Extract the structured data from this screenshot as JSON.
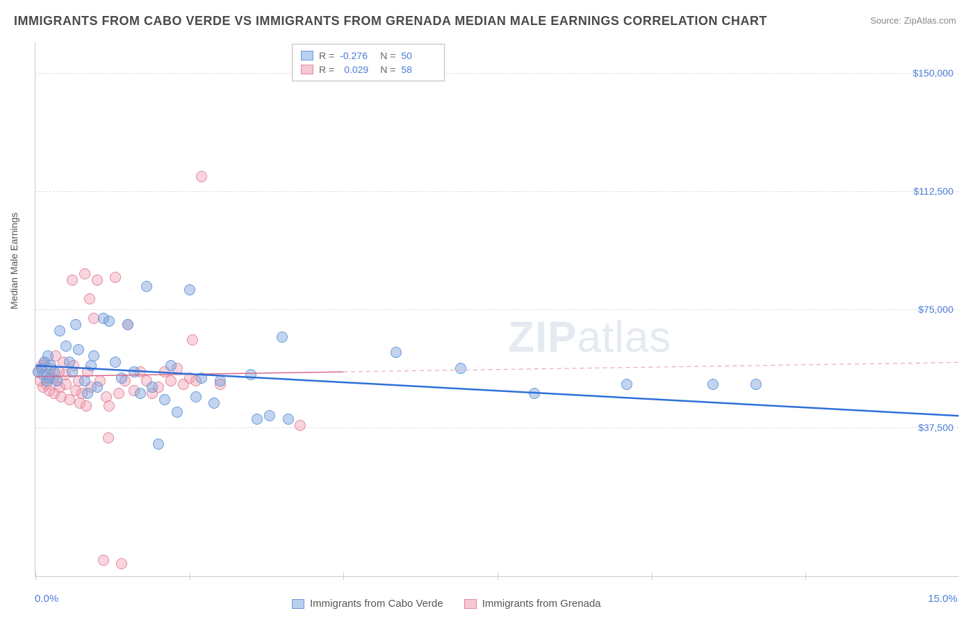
{
  "title": "IMMIGRANTS FROM CABO VERDE VS IMMIGRANTS FROM GRENADA MEDIAN MALE EARNINGS CORRELATION CHART",
  "source": "Source: ZipAtlas.com",
  "watermark_zip": "ZIP",
  "watermark_atlas": "atlas",
  "chart": {
    "type": "scatter",
    "ylabel": "Median Male Earnings",
    "xlim": [
      0,
      15
    ],
    "ylim": [
      -10000,
      160000
    ],
    "x_axis_min_label": "0.0%",
    "x_axis_max_label": "15.0%",
    "y_gridlines": [
      37500,
      75000,
      112500,
      150000
    ],
    "y_tick_labels": [
      "$37,500",
      "$75,000",
      "$112,500",
      "$150,000"
    ],
    "x_ticks": [
      0,
      2.5,
      5,
      7.5,
      10,
      12.5
    ],
    "background_color": "#ffffff",
    "grid_color": "#dddddd",
    "series": [
      {
        "name": "Immigrants from Cabo Verde",
        "color_fill": "rgba(120,160,220,0.45)",
        "color_stroke": "#6a9bd8",
        "swatch_fill": "#b8d0f0",
        "swatch_border": "#6a9bd8",
        "r": "-0.276",
        "n": "50",
        "regression": {
          "x1": 0,
          "y1": 57000,
          "x2": 15,
          "y2": 41000,
          "stroke": "#2e6fd8",
          "width": 2.5,
          "dash": "none"
        },
        "points": [
          [
            0.05,
            55000
          ],
          [
            0.1,
            56000
          ],
          [
            0.12,
            54000
          ],
          [
            0.15,
            58000
          ],
          [
            0.18,
            52000
          ],
          [
            0.2,
            60000
          ],
          [
            0.22,
            53000
          ],
          [
            0.25,
            57000
          ],
          [
            0.3,
            55000
          ],
          [
            0.35,
            52000
          ],
          [
            0.4,
            68000
          ],
          [
            0.5,
            63000
          ],
          [
            0.55,
            58000
          ],
          [
            0.6,
            55000
          ],
          [
            0.65,
            70000
          ],
          [
            0.7,
            62000
          ],
          [
            0.8,
            52000
          ],
          [
            0.85,
            48000
          ],
          [
            0.9,
            57000
          ],
          [
            0.95,
            60000
          ],
          [
            1.0,
            50000
          ],
          [
            1.1,
            72000
          ],
          [
            1.2,
            71000
          ],
          [
            1.3,
            58000
          ],
          [
            1.4,
            53000
          ],
          [
            1.5,
            70000
          ],
          [
            1.6,
            55000
          ],
          [
            1.7,
            48000
          ],
          [
            1.8,
            82000
          ],
          [
            1.9,
            50000
          ],
          [
            2.0,
            32000
          ],
          [
            2.1,
            46000
          ],
          [
            2.2,
            57000
          ],
          [
            2.3,
            42000
          ],
          [
            2.5,
            81000
          ],
          [
            2.6,
            47000
          ],
          [
            2.7,
            53000
          ],
          [
            2.9,
            45000
          ],
          [
            3.0,
            52000
          ],
          [
            3.5,
            54000
          ],
          [
            3.6,
            40000
          ],
          [
            3.8,
            41000
          ],
          [
            4.0,
            66000
          ],
          [
            4.1,
            40000
          ],
          [
            5.85,
            61000
          ],
          [
            6.9,
            56000
          ],
          [
            8.1,
            48000
          ],
          [
            9.6,
            51000
          ],
          [
            11.0,
            51000
          ],
          [
            11.7,
            51000
          ]
        ]
      },
      {
        "name": "Immigrants from Grenada",
        "color_fill": "rgba(240,150,170,0.40)",
        "color_stroke": "#e08aa0",
        "swatch_fill": "#f5c8d4",
        "swatch_border": "#e08aa0",
        "r": "0.029",
        "n": "58",
        "regression_solid": {
          "x1": 0,
          "y1": 53500,
          "x2": 5,
          "y2": 55000,
          "stroke": "#d86a88",
          "width": 1.5
        },
        "regression_dash": {
          "x1": 5,
          "y1": 55000,
          "x2": 15,
          "y2": 58000,
          "stroke": "#e8a8b8",
          "width": 1.2,
          "dash": "6,5"
        },
        "points": [
          [
            0.05,
            55000
          ],
          [
            0.08,
            52000
          ],
          [
            0.1,
            57000
          ],
          [
            0.12,
            50000
          ],
          [
            0.15,
            58000
          ],
          [
            0.18,
            51000
          ],
          [
            0.2,
            54000
          ],
          [
            0.22,
            49000
          ],
          [
            0.25,
            56000
          ],
          [
            0.28,
            53000
          ],
          [
            0.3,
            48000
          ],
          [
            0.33,
            60000
          ],
          [
            0.35,
            52000
          ],
          [
            0.38,
            55000
          ],
          [
            0.4,
            50000
          ],
          [
            0.42,
            47000
          ],
          [
            0.45,
            58000
          ],
          [
            0.48,
            54000
          ],
          [
            0.5,
            51000
          ],
          [
            0.55,
            46000
          ],
          [
            0.6,
            84000
          ],
          [
            0.62,
            57000
          ],
          [
            0.65,
            49000
          ],
          [
            0.7,
            52000
          ],
          [
            0.72,
            45000
          ],
          [
            0.75,
            48000
          ],
          [
            0.8,
            86000
          ],
          [
            0.82,
            44000
          ],
          [
            0.85,
            55000
          ],
          [
            0.88,
            78000
          ],
          [
            0.9,
            50000
          ],
          [
            0.95,
            72000
          ],
          [
            1.0,
            84000
          ],
          [
            1.05,
            52000
          ],
          [
            1.1,
            -5000
          ],
          [
            1.15,
            47000
          ],
          [
            1.18,
            34000
          ],
          [
            1.2,
            44000
          ],
          [
            1.3,
            85000
          ],
          [
            1.35,
            48000
          ],
          [
            1.4,
            -6000
          ],
          [
            1.45,
            52000
          ],
          [
            1.5,
            70000
          ],
          [
            1.6,
            49000
          ],
          [
            1.7,
            55000
          ],
          [
            1.8,
            52000
          ],
          [
            1.9,
            48000
          ],
          [
            2.0,
            50000
          ],
          [
            2.1,
            55000
          ],
          [
            2.2,
            52000
          ],
          [
            2.3,
            56000
          ],
          [
            2.4,
            51000
          ],
          [
            2.5,
            53000
          ],
          [
            2.55,
            65000
          ],
          [
            2.6,
            52000
          ],
          [
            2.7,
            117000
          ],
          [
            4.3,
            38000
          ],
          [
            3.0,
            51000
          ]
        ]
      }
    ],
    "top_legend_labels": {
      "r": "R =",
      "n": "N ="
    }
  }
}
